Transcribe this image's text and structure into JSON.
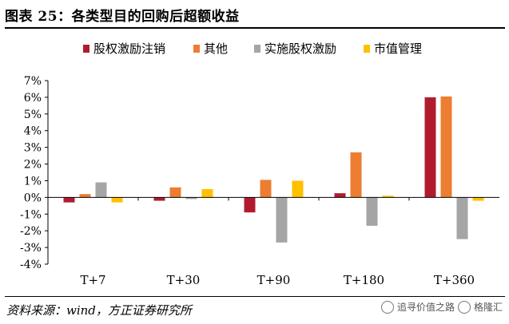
{
  "title": "图表 25：各类型目的回购后超额收益",
  "source": "资料来源：wind，方正证券研究所",
  "watermark": {
    "text": "追寻价值之路",
    "brand": "格隆汇"
  },
  "chart_data": {
    "type": "bar",
    "categories": [
      "T+7",
      "T+30",
      "T+90",
      "T+180",
      "T+360"
    ],
    "series": [
      {
        "name": "股权激励注销",
        "color": "#b01c2e",
        "values": [
          -0.3,
          -0.2,
          -0.9,
          0.25,
          6.0
        ]
      },
      {
        "name": "其他",
        "color": "#ed7d31",
        "values": [
          0.2,
          0.6,
          1.05,
          2.7,
          6.05
        ]
      },
      {
        "name": "实施股权激励",
        "color": "#a5a5a5",
        "values": [
          0.9,
          -0.1,
          -2.7,
          -1.7,
          -2.5
        ]
      },
      {
        "name": "市值管理",
        "color": "#ffc000",
        "values": [
          -0.3,
          0.5,
          1.0,
          0.1,
          -0.2
        ]
      }
    ],
    "ylim": [
      -4,
      7
    ],
    "yticks": [
      -4,
      -3,
      -2,
      -1,
      0,
      1,
      2,
      3,
      4,
      5,
      6,
      7
    ],
    "ytick_labels": [
      "-4%",
      "-3%",
      "-2%",
      "-1%",
      "0%",
      "1%",
      "2%",
      "3%",
      "4%",
      "5%",
      "6%",
      "7%"
    ],
    "grid": false,
    "legend_position": "top"
  }
}
